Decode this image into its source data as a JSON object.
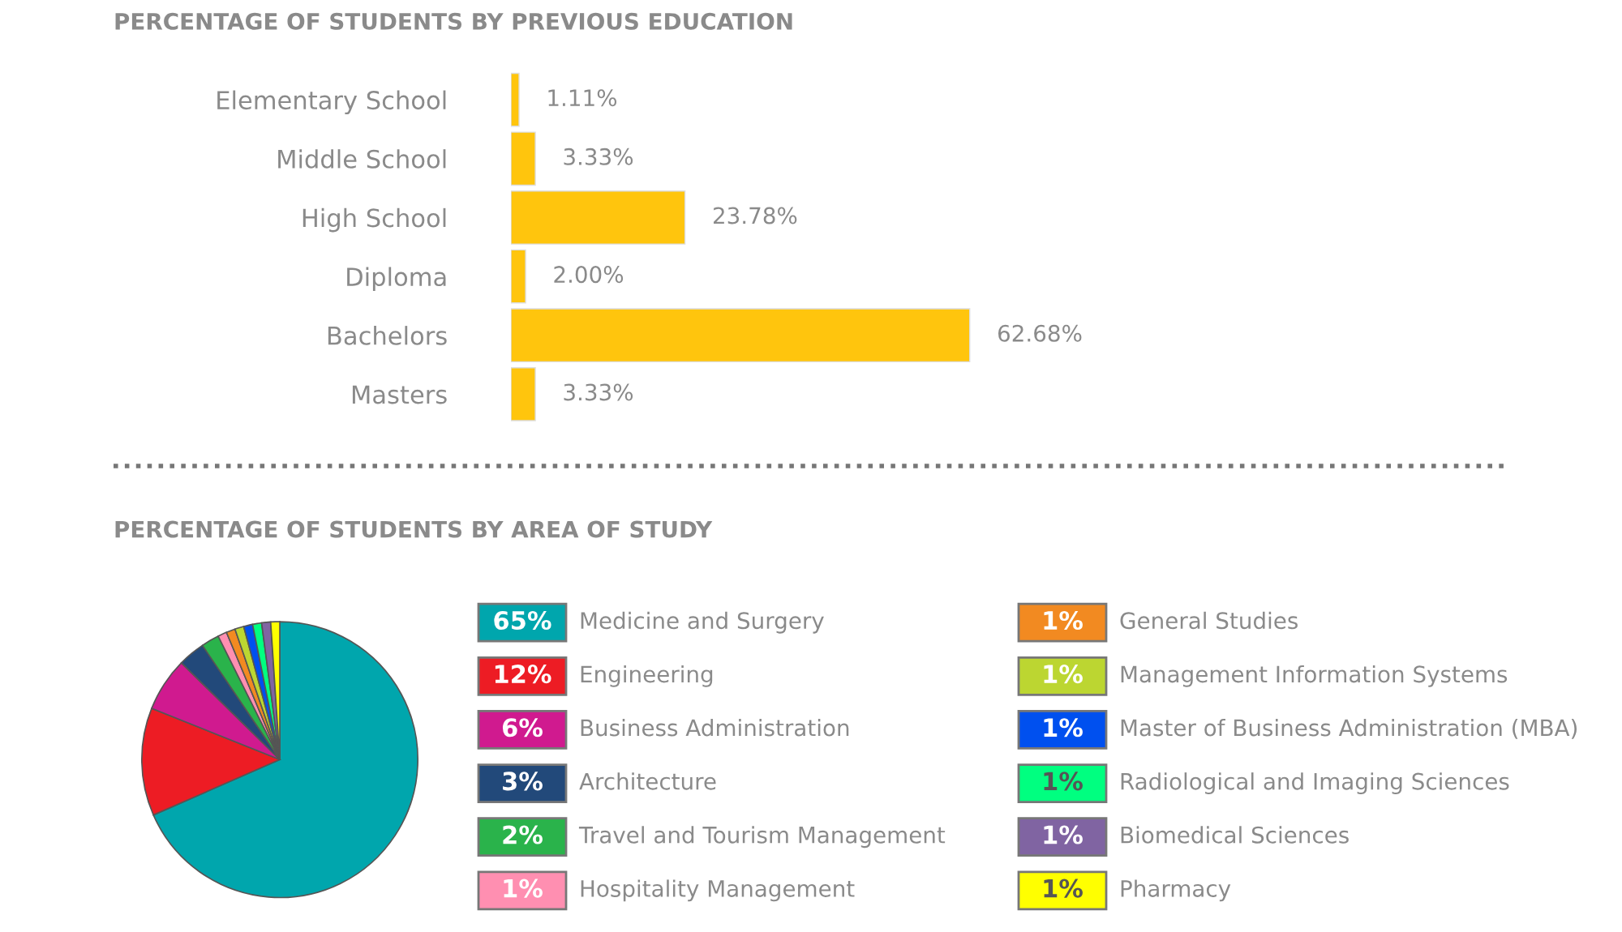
{
  "chart_data": [
    {
      "type": "bar",
      "orientation": "horizontal",
      "title": "PERCENTAGE OF STUDENTS BY PREVIOUS EDUCATION",
      "categories": [
        "Elementary School",
        "Middle School",
        "High School",
        "Diploma",
        "Bachelors",
        "Masters"
      ],
      "values": [
        1.11,
        3.33,
        23.78,
        2.0,
        62.68,
        3.33
      ],
      "value_labels": [
        "1.11%",
        "3.33%",
        "23.78%",
        "2.00%",
        "62.68%",
        "3.33%"
      ],
      "color": "#ffc50d",
      "tick_labels": "y",
      "grid": false,
      "legend": false
    },
    {
      "type": "pie",
      "title": "PERCENTAGE OF STUDENTS BY AREA OF STUDY",
      "categories": [
        "Medicine and Surgery",
        "Engineering",
        "Business Administration",
        "Architecture",
        "Travel and Tourism Management",
        "Hospitality Management",
        "General Studies",
        "Management Information Systems",
        "Master of Business Administration (MBA)",
        "Radiological and Imaging Sciences",
        "Biomedical Sciences",
        "Pharmacy"
      ],
      "values": [
        65,
        12,
        6,
        3,
        2,
        1,
        1,
        1,
        1,
        1,
        1,
        1
      ],
      "value_labels": [
        "65%",
        "12%",
        "6%",
        "3%",
        "2%",
        "1%",
        "1%",
        "1%",
        "1%",
        "1%",
        "1%",
        "1%"
      ],
      "colors": [
        "#00a6ad",
        "#ed1c24",
        "#d01a8f",
        "#22497a",
        "#2ab34b",
        "#ff8fb1",
        "#f28a21",
        "#bcd631",
        "#0050ef",
        "#00ff80",
        "#8064a2",
        "#ffff00"
      ],
      "legend": "right"
    }
  ]
}
